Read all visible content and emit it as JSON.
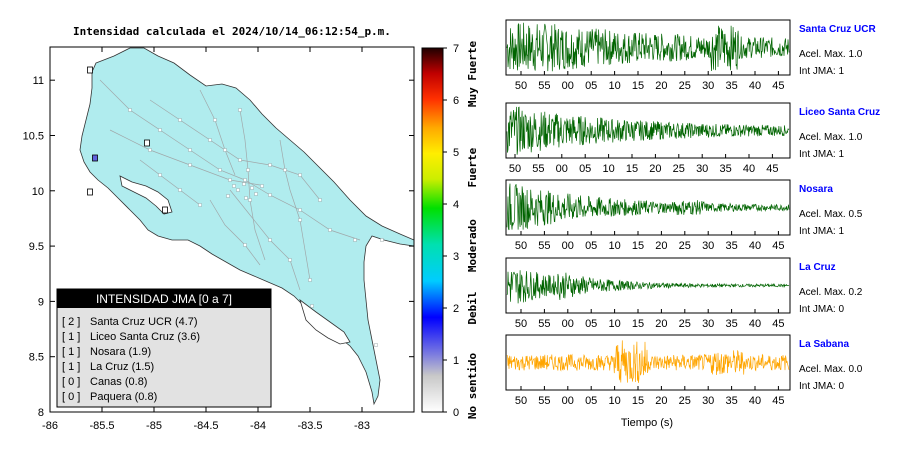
{
  "map": {
    "title": "Intensidad calculada el 2024/10/14_06:12:54_p.m.",
    "x_ticks": [
      "-86",
      "-85.5",
      "-85",
      "-84.5",
      "-84",
      "-83.5",
      "-83"
    ],
    "y_ticks": [
      "8",
      "8.5",
      "9",
      "9.5",
      "10",
      "10.5",
      "11"
    ],
    "x_range": [
      -86,
      -82.5
    ],
    "y_range": [
      8,
      11.3
    ],
    "land_color": "#b0ecee",
    "legend": {
      "title": "INTENSIDAD JMA [0 a 7]",
      "items": [
        {
          "level": "[ 2 ]",
          "name": "Santa Cruz UCR (4.7)"
        },
        {
          "level": "[ 1 ]",
          "name": "Liceo Santa Cruz (3.6)"
        },
        {
          "level": "[ 1 ]",
          "name": "Nosara (1.9)"
        },
        {
          "level": "[ 1 ]",
          "name": "La Cruz (1.5)"
        },
        {
          "level": "[ 0 ]",
          "name": "Canas (0.8)"
        },
        {
          "level": "[ 0 ]",
          "name": "Paquera (0.8)"
        }
      ]
    }
  },
  "scale": {
    "ticks": [
      "0",
      "1",
      "2",
      "3",
      "4",
      "5",
      "6",
      "7"
    ],
    "categories": [
      "No sentido",
      "Debil",
      "Moderado",
      "Fuerte",
      "Muy Fuerte"
    ]
  },
  "stations": [
    {
      "name": "Santa Cruz UCR",
      "acel": "Acel. Max. 1.0",
      "int": "Int JMA: 1",
      "color": "#006400"
    },
    {
      "name": "Liceo Santa Cruz",
      "acel": "Acel. Max. 1.0",
      "int": "Int JMA: 1",
      "color": "#006400"
    },
    {
      "name": "Nosara",
      "acel": "Acel. Max. 0.5",
      "int": "Int JMA: 1",
      "color": "#006400"
    },
    {
      "name": "La Cruz",
      "acel": "Acel. Max. 0.2",
      "int": "Int JMA: 0",
      "color": "#006400"
    },
    {
      "name": "La Sabana",
      "acel": "Acel. Max. 0.0",
      "int": "Int JMA: 0",
      "color": "#ffa500"
    }
  ],
  "time_axis": {
    "ticks": [
      "50",
      "55",
      "00",
      "05",
      "10",
      "15",
      "20",
      "25",
      "30",
      "35",
      "40",
      "45"
    ],
    "label": "Tiempo (s)"
  }
}
